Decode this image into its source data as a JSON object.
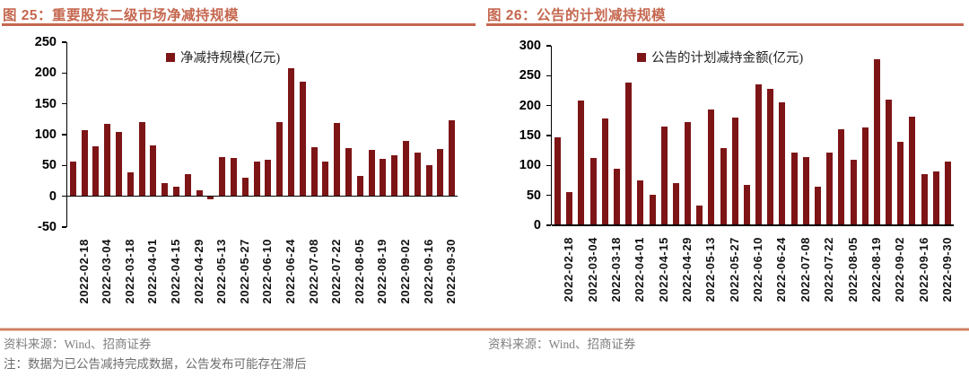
{
  "colors": {
    "title_accent": "#C5674F",
    "bar": "#7D1517",
    "bottom_rule": "#CB7E62",
    "footer_text": "#7F7F7F",
    "axis": "#000000"
  },
  "figures": [
    {
      "title_text": "图 25：重要股东二级市场净减持规模",
      "legend": "净减持规模(亿元)",
      "source": "资料来源：Wind、招商证券",
      "note": "注：数据为已公告减持完成数据，公告发布可能存在滞后"
    },
    {
      "title_text": "图 26：公告的计划减持规模",
      "legend": "公告的计划减持金额(亿元)",
      "source": "资料来源：Wind、招商证券"
    }
  ],
  "chart_data": [
    {
      "type": "bar",
      "title": "重要股东二级市场净减持规模",
      "series_name": "净减持规模(亿元)",
      "unit": "亿元",
      "x_tick_labels": [
        "2022-02-18",
        "2022-03-04",
        "2022-03-18",
        "2022-04-01",
        "2022-04-15",
        "2022-04-29",
        "2022-05-13",
        "2022-05-27",
        "2022-06-10",
        "2022-06-24",
        "2022-07-08",
        "2022-07-22",
        "2022-08-05",
        "2022-08-19",
        "2022-09-02",
        "2022-09-16",
        "2022-09-30"
      ],
      "label_every": 2,
      "label_offset": 1,
      "values": [
        56,
        107,
        81,
        118,
        104,
        39,
        121,
        83,
        22,
        15,
        36,
        10,
        -5,
        63,
        62,
        30,
        56,
        59,
        120,
        208,
        186,
        80,
        56,
        119,
        78,
        33,
        75,
        60,
        67,
        90,
        71,
        50,
        77,
        123
      ],
      "ylim": [
        -50,
        250
      ],
      "yticks": [
        250,
        200,
        150,
        100,
        50,
        0,
        -50
      ],
      "grid": false,
      "legend_position": "top-center"
    },
    {
      "type": "bar",
      "title": "公告的计划减持规模",
      "series_name": "公告的计划减持金额(亿元)",
      "unit": "亿元",
      "x_tick_labels": [
        "2022-02-18",
        "2022-03-04",
        "2022-03-18",
        "2022-04-01",
        "2022-04-15",
        "2022-04-29",
        "2022-05-13",
        "2022-05-27",
        "2022-06-10",
        "2022-06-24",
        "2022-07-08",
        "2022-07-22",
        "2022-08-05",
        "2022-08-19",
        "2022-09-02",
        "2022-09-16",
        "2022-09-30"
      ],
      "label_every": 2,
      "label_offset": 1,
      "values": [
        147,
        55,
        208,
        113,
        179,
        94,
        238,
        75,
        51,
        165,
        71,
        173,
        33,
        194,
        129,
        180,
        68,
        236,
        228,
        206,
        121,
        114,
        64,
        122,
        160,
        110,
        164,
        278,
        210,
        140,
        181,
        86,
        90,
        106
      ],
      "ylim": [
        0,
        300
      ],
      "yticks": [
        300,
        250,
        200,
        150,
        100,
        50,
        0
      ],
      "grid": false,
      "legend_position": "top-center"
    }
  ]
}
